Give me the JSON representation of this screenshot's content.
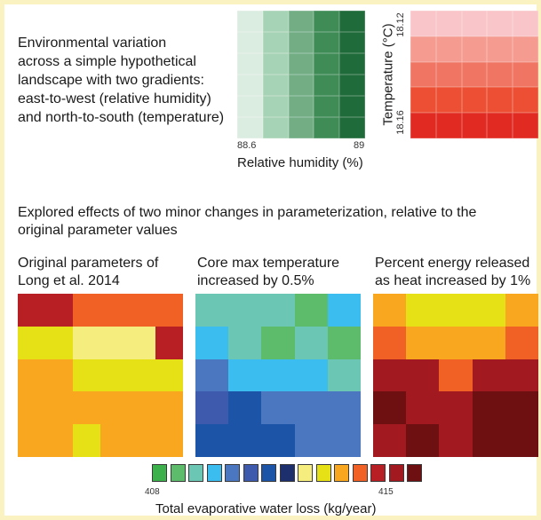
{
  "intro": {
    "lines": [
      "Environmental variation",
      "across a simple hypothetical",
      "landscape with two gradients:",
      "east-to-west (relative humidity)",
      "and north-to-south (temperature)"
    ]
  },
  "humidity_panel": {
    "axis_label": "Relative humidity (%)",
    "tick_left": "88.6",
    "tick_right": "89",
    "column_colors": [
      "#dbece1",
      "#a6d3b6",
      "#72ad84",
      "#3f8c57",
      "#1f6b3a"
    ],
    "rows": 6
  },
  "temperature_panel": {
    "axis_label": "Temperature (°C)",
    "tick_top": "18.12",
    "tick_bottom": "18.16",
    "row_colors": [
      "#f9c5c8",
      "#f59b90",
      "#f07563",
      "#ec4f33",
      "#e12a22"
    ],
    "cols": 5
  },
  "explored": {
    "line1": "Explored effects of two minor changes in parameterization, relative to the",
    "line2": "original parameter values"
  },
  "maps": [
    {
      "title_lines": [
        "Original parameters of",
        "Long et al. 2014"
      ],
      "cols": 6,
      "cells": [
        [
          12,
          12,
          11,
          11,
          11,
          11
        ],
        [
          9,
          9,
          8,
          8,
          8,
          12
        ],
        [
          10,
          10,
          9,
          9,
          9,
          9
        ],
        [
          10,
          10,
          10,
          10,
          10,
          10
        ],
        [
          10,
          10,
          9,
          10,
          10,
          10
        ]
      ]
    },
    {
      "title_lines": [
        "Core max temperature",
        "increased by 0.5%"
      ],
      "cols": 5,
      "cells": [
        [
          2,
          2,
          2,
          1,
          3
        ],
        [
          3,
          2,
          1,
          2,
          1
        ],
        [
          4,
          3,
          3,
          3,
          2
        ],
        [
          5,
          6,
          4,
          4,
          4
        ],
        [
          6,
          6,
          6,
          4,
          4
        ]
      ]
    },
    {
      "title_lines": [
        "Percent energy released",
        "as heat increased by 1%"
      ],
      "cols": 5,
      "cells": [
        [
          10,
          9,
          9,
          9,
          10
        ],
        [
          11,
          10,
          10,
          10,
          11
        ],
        [
          13,
          13,
          11,
          13,
          13
        ],
        [
          14,
          13,
          13,
          14,
          14
        ],
        [
          13,
          14,
          13,
          14,
          14
        ]
      ]
    }
  ],
  "legend": {
    "colors": [
      "#3cb04b",
      "#5cbc6c",
      "#6bc7b4",
      "#3bbdf0",
      "#4a77c0",
      "#3d5aad",
      "#1c55a8",
      "#1e2f6e",
      "#f5ee7e",
      "#e6e117",
      "#f8a71e",
      "#f16125",
      "#b81f25",
      "#a31920",
      "#6e1012"
    ],
    "label_left": "408",
    "label_right": "415",
    "title": "Total evaporative water loss (kg/year)"
  },
  "map_colors": [
    "#3cb04b",
    "#5cbc6c",
    "#6bc7b4",
    "#3bbdf0",
    "#4a77c0",
    "#3d5aad",
    "#1c55a8",
    "#1e2f6e",
    "#f5ee7e",
    "#e6e117",
    "#f8a71e",
    "#f16125",
    "#b81f25",
    "#a31920",
    "#6e1012"
  ]
}
